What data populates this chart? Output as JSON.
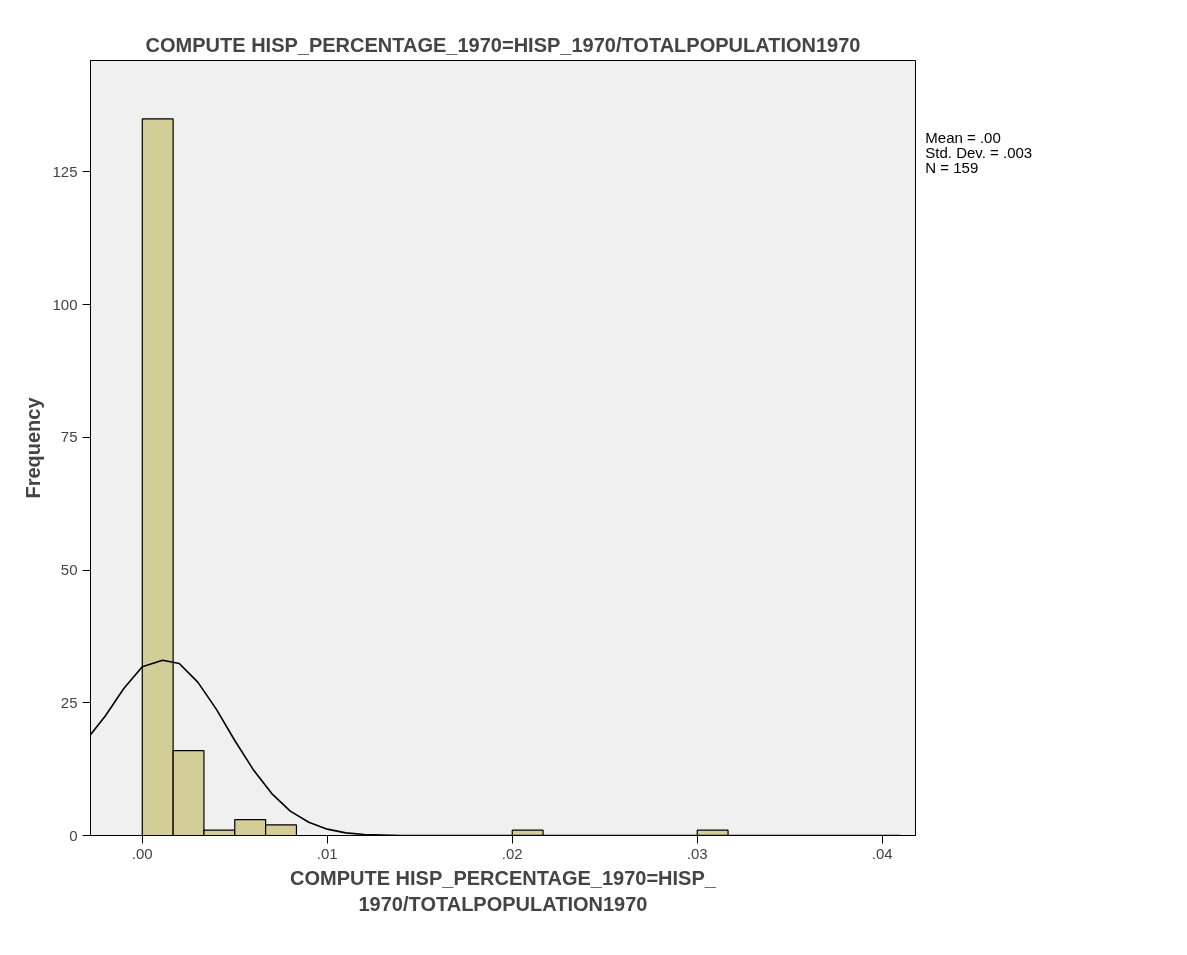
{
  "chart_data": {
    "type": "histogram",
    "title": "COMPUTE HISP_PERCENTAGE_1970=HISP_1970/TOTALPOPULATION1970",
    "xlabel": "COMPUTE HISP_PERCENTAGE_1970=HISP_\n1970/TOTALPOPULATION1970",
    "ylabel": "Frequency",
    "bins": [
      0,
      0.001667,
      0.003333,
      0.005,
      0.006667,
      0.008333,
      0.01,
      0.011667,
      0.013333,
      0.015,
      0.016667,
      0.018333,
      0.02,
      0.021667,
      0.023333,
      0.025,
      0.026667,
      0.028333,
      0.03,
      0.031667
    ],
    "values": [
      135,
      16,
      1,
      3,
      2,
      0,
      0,
      0,
      0,
      0,
      0,
      0,
      1,
      0,
      0,
      0,
      0,
      0,
      1
    ],
    "color": "#d3ce97",
    "series": [
      {
        "type": "line",
        "color": "#000000",
        "x": [
          -0.0028,
          -0.002,
          -0.001,
          0,
          0.0011,
          0.002,
          0.003,
          0.004,
          0.005,
          0.006,
          0.007,
          0.008,
          0.009,
          0.01,
          0.011,
          0.012,
          0.014,
          0.041
        ],
        "values": [
          19,
          22.5,
          27.7,
          31.8,
          33,
          32.4,
          28.9,
          23.8,
          17.9,
          12.4,
          7.9,
          4.6,
          2.5,
          1.2,
          0.5,
          0.2,
          0,
          0
        ]
      }
    ],
    "xlim": [
      -0.0028,
      0.0418
    ],
    "ylim": [
      0,
      146
    ],
    "xticks": [
      {
        "value": 0,
        "label": ".00"
      },
      {
        "value": 0.01,
        "label": ".01"
      },
      {
        "value": 0.02,
        "label": ".02"
      },
      {
        "value": 0.03,
        "label": ".03"
      },
      {
        "value": 0.04,
        "label": ".04"
      }
    ],
    "yticks": [
      0,
      25,
      50,
      75,
      100,
      125
    ],
    "grid": false,
    "annotations": [
      "Mean = .00",
      "Std. Dev. = .003",
      "N = 159"
    ]
  }
}
